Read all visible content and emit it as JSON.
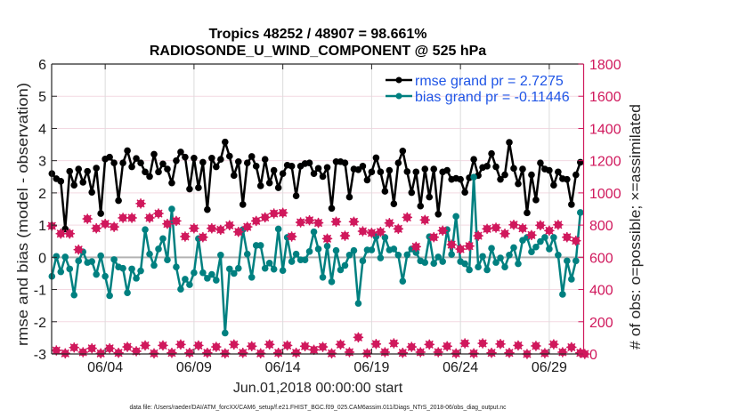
{
  "chart_data": {
    "type": "line",
    "title": [
      "Tropics 48252 / 48907 = 98.661%",
      "RADIOSONDE_U_WIND_COMPONENT @ 525 hPa"
    ],
    "xlabel": "Jun.01,2018 00:00:00 start",
    "x_range_days": [
      0,
      30
    ],
    "x_step_days": 0.25,
    "xticks": [
      {
        "day": 3,
        "label": "06/04"
      },
      {
        "day": 8,
        "label": "06/09"
      },
      {
        "day": 13,
        "label": "06/14"
      },
      {
        "day": 18,
        "label": "06/19"
      },
      {
        "day": 23,
        "label": "06/24"
      },
      {
        "day": 28,
        "label": "06/29"
      }
    ],
    "y_left": {
      "label": "rmse and bias (model - observation)",
      "range": [
        -3,
        6
      ],
      "ticks": [
        -3,
        -2,
        -1,
        0,
        1,
        2,
        3,
        4,
        5,
        6
      ]
    },
    "y_right": {
      "label": "# of obs: o=possible; ×=assimilated",
      "range": [
        0,
        1800
      ],
      "ticks": [
        0,
        200,
        400,
        600,
        800,
        1000,
        1200,
        1400,
        1600,
        1800
      ],
      "color": "#d0185c"
    },
    "grid": true,
    "reference_line": {
      "y": 0,
      "color": "#b3b3b3"
    },
    "legend": {
      "position": "top-right",
      "text_color": "#1f55e6"
    },
    "series": [
      {
        "name": "rmse",
        "legend": "rmse grand pr = 2.7275",
        "axis": "left",
        "color": "#000000",
        "marker": "filled-circle",
        "values": [
          2.6,
          2.44,
          2.36,
          0.88,
          2.67,
          2.24,
          2.74,
          2.33,
          2.67,
          2.02,
          2.77,
          1.36,
          3.05,
          3.11,
          2.93,
          1.76,
          2.93,
          3.31,
          2.81,
          3.07,
          2.93,
          2.65,
          2.51,
          3.2,
          2.65,
          2.9,
          2.74,
          2.31,
          3.0,
          3.27,
          3.11,
          2.12,
          3.08,
          2.16,
          2.95,
          1.48,
          3.08,
          2.81,
          3.04,
          3.58,
          3.14,
          2.54,
          2.97,
          1.64,
          2.93,
          3.13,
          2.83,
          2.22,
          3.04,
          2.31,
          2.7,
          2.16,
          2.6,
          2.86,
          2.83,
          1.91,
          2.83,
          2.91,
          2.93,
          2.6,
          2.76,
          2.51,
          2.79,
          1.52,
          2.97,
          2.97,
          2.93,
          1.87,
          2.74,
          2.72,
          2.83,
          2.4,
          2.65,
          3.09,
          2.65,
          2.05,
          2.7,
          1.66,
          2.93,
          3.3,
          2.66,
          2.01,
          2.65,
          1.59,
          2.74,
          1.87,
          2.74,
          1.34,
          2.65,
          2.7,
          2.42,
          2.45,
          2.42,
          2.02,
          2.47,
          3.04,
          2.54,
          2.79,
          2.83,
          3.22,
          2.81,
          2.42,
          2.56,
          3.57,
          2.76,
          2.28,
          2.74,
          1.38,
          2.56,
          1.78,
          2.93,
          2.74,
          2.7,
          2.24,
          2.65,
          2.44,
          2.42,
          1.64,
          2.56,
          2.95
        ]
      },
      {
        "name": "bias",
        "legend": "bias grand pr = -0.11446",
        "axis": "left",
        "color": "#008080",
        "marker": "filled-circle",
        "values": [
          -0.59,
          0.03,
          -0.45,
          0.01,
          -0.36,
          -1.17,
          -0.11,
          0.17,
          -0.16,
          -0.13,
          -0.53,
          0.05,
          -0.59,
          -1.19,
          -0.07,
          -0.3,
          -0.34,
          -1.1,
          -0.36,
          -0.65,
          -0.42,
          0.86,
          0.1,
          -0.25,
          0.26,
          0.58,
          -0.08,
          1.5,
          -0.3,
          -0.99,
          -0.68,
          -0.85,
          -0.48,
          0.58,
          -0.48,
          -0.65,
          -0.53,
          -0.71,
          0.07,
          -2.35,
          -0.36,
          -0.5,
          -0.34,
          0.86,
          0.1,
          -0.62,
          0.37,
          0.37,
          -0.34,
          -0.18,
          -0.37,
          0.88,
          -0.41,
          0.62,
          -0.13,
          0.1,
          -0.08,
          -0.08,
          0.18,
          0.79,
          0.26,
          -0.62,
          0.35,
          -0.76,
          0.21,
          -0.39,
          -0.25,
          0.07,
          0.21,
          -1.43,
          -0.11,
          0.23,
          0.23,
          0.64,
          -0.02,
          0.62,
          0.23,
          0.26,
          0.07,
          -0.74,
          0.08,
          0.26,
          0.15,
          -0.11,
          -0.16,
          0.64,
          -0.19,
          0.01,
          -0.13,
          0.86,
          0.09,
          1.27,
          -0.13,
          -0.2,
          -0.39,
          2.49,
          -0.3,
          0.03,
          -0.39,
          0.28,
          -0.16,
          -0.02,
          -0.3,
          0.07,
          0.3,
          -0.2,
          0.53,
          0.62,
          0.17,
          0.32,
          0.49,
          0.62,
          0.26,
          0.62,
          0.07,
          -1.15,
          -0.11,
          -0.68,
          -0.11,
          1.39
        ]
      },
      {
        "name": "obs possible",
        "axis": "right",
        "color": "#d0185c",
        "marker": "o",
        "values": [
          795,
          22,
          747,
          4,
          747,
          40,
          648,
          11,
          839,
          35,
          780,
          4,
          808,
          35,
          789,
          7,
          845,
          44,
          845,
          17,
          934,
          53,
          845,
          4,
          872,
          53,
          808,
          7,
          826,
          59,
          729,
          7,
          780,
          53,
          725,
          7,
          780,
          44,
          771,
          4,
          799,
          59,
          758,
          7,
          789,
          48,
          826,
          4,
          848,
          59,
          872,
          7,
          876,
          53,
          729,
          7,
          817,
          48,
          830,
          26,
          814,
          44,
          716,
          4,
          821,
          59,
          734,
          11,
          821,
          103,
          762,
          4,
          752,
          62,
          758,
          11,
          813,
          66,
          777,
          7,
          848,
          44,
          666,
          11,
          832,
          59,
          725,
          11,
          766,
          48,
          679,
          4,
          651,
          66,
          670,
          4,
          734,
          66,
          777,
          7,
          784,
          62,
          747,
          7,
          802,
          53,
          780,
          0,
          738,
          50,
          799,
          5,
          766,
          60,
          802,
          11,
          725,
          42,
          703,
          7,
          0
        ]
      },
      {
        "name": "obs assimilated",
        "axis": "right",
        "color": "#d0185c",
        "marker": "*",
        "values": [
          795,
          22,
          747,
          4,
          747,
          40,
          648,
          11,
          839,
          35,
          780,
          4,
          808,
          35,
          789,
          7,
          845,
          44,
          845,
          17,
          934,
          53,
          845,
          4,
          872,
          53,
          808,
          7,
          826,
          59,
          729,
          7,
          780,
          53,
          725,
          7,
          780,
          44,
          771,
          4,
          799,
          59,
          758,
          7,
          789,
          48,
          826,
          4,
          848,
          59,
          872,
          7,
          876,
          53,
          729,
          7,
          817,
          48,
          830,
          26,
          814,
          44,
          716,
          4,
          821,
          59,
          734,
          11,
          821,
          103,
          762,
          4,
          752,
          62,
          758,
          11,
          813,
          66,
          777,
          7,
          848,
          44,
          666,
          11,
          832,
          59,
          725,
          11,
          766,
          48,
          679,
          4,
          651,
          66,
          670,
          4,
          734,
          66,
          777,
          7,
          784,
          62,
          747,
          7,
          802,
          53,
          780,
          0,
          738,
          50,
          799,
          5,
          766,
          60,
          802,
          11,
          725,
          42,
          703,
          7,
          0
        ]
      }
    ]
  },
  "footer": {
    "data_file": "data file: /Users/raeder/DAI/ATM_forcXX/CAM6_setup/f.e21.FHIST_BGC.f09_025.CAM6assim.011/Diags_NTrS_2018-06/obs_diag_output.nc"
  }
}
